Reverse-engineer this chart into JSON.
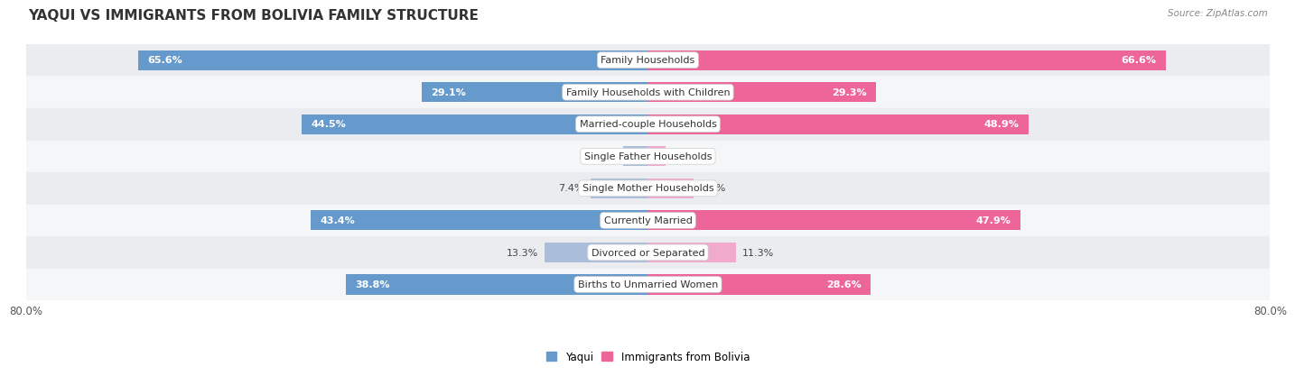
{
  "title": "YAQUI VS IMMIGRANTS FROM BOLIVIA FAMILY STRUCTURE",
  "source": "Source: ZipAtlas.com",
  "categories": [
    "Family Households",
    "Family Households with Children",
    "Married-couple Households",
    "Single Father Households",
    "Single Mother Households",
    "Currently Married",
    "Divorced or Separated",
    "Births to Unmarried Women"
  ],
  "yaqui_values": [
    65.6,
    29.1,
    44.5,
    3.2,
    7.4,
    43.4,
    13.3,
    38.8
  ],
  "bolivia_values": [
    66.6,
    29.3,
    48.9,
    2.3,
    5.9,
    47.9,
    11.3,
    28.6
  ],
  "yaqui_color": "#6699CC",
  "bolivia_color": "#EE6699",
  "yaqui_light_color": "#AABDDA",
  "bolivia_light_color": "#F0AACC",
  "max_value": 80.0,
  "label_fontsize": 8.0,
  "title_fontsize": 11,
  "bar_height": 0.62,
  "legend_labels": [
    "Yaqui",
    "Immigrants from Bolivia"
  ],
  "threshold": 20.0,
  "row_colors": [
    "#EAECF0",
    "#F5F6F8"
  ]
}
